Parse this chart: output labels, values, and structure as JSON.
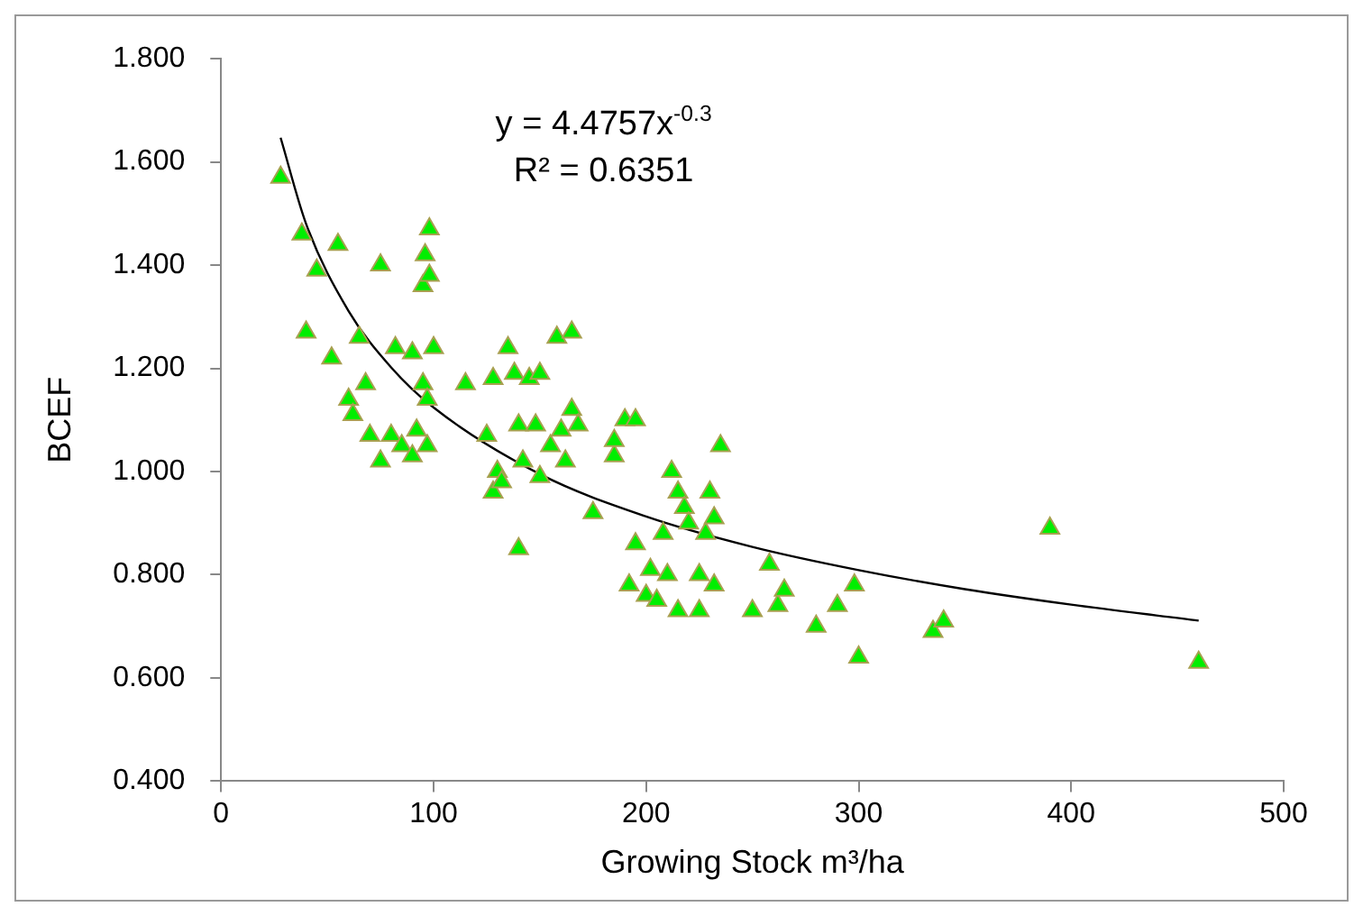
{
  "chart_data": {
    "type": "scatter",
    "xlabel": "Growing Stock m³/ha",
    "ylabel": "BCEF",
    "annotations": [
      "y = 4.4757x$^{-0.3}$",
      "R² = 0.6351"
    ],
    "xlim": [
      0,
      500
    ],
    "xticks": [
      0,
      100,
      200,
      300,
      400,
      500
    ],
    "ylim": [
      0.4,
      1.8
    ],
    "yticks": [
      {
        "value": 0.4,
        "label": "0.400"
      },
      {
        "value": 0.6,
        "label": "0.600"
      },
      {
        "value": 0.8,
        "label": "0.800"
      },
      {
        "value": 1.0,
        "label": "1.000"
      },
      {
        "value": 1.2,
        "label": "1.200"
      },
      {
        "value": 1.4,
        "label": "1.400"
      },
      {
        "value": 1.6,
        "label": "1.600"
      },
      {
        "value": 1.8,
        "label": "1.800"
      }
    ],
    "grid": false,
    "legend": false,
    "marker": "triangle",
    "series": [
      {
        "color": "#00ee00",
        "x": [
          28,
          38,
          40,
          45,
          55,
          52,
          60,
          62,
          65,
          68,
          70,
          75,
          75,
          80,
          82,
          85,
          90,
          90,
          92,
          95,
          96,
          98,
          98,
          100,
          95,
          97,
          97,
          115,
          125,
          128,
          128,
          130,
          132,
          135,
          138,
          140,
          140,
          142,
          145,
          148,
          150,
          150,
          155,
          158,
          160,
          162,
          165,
          165,
          168,
          175,
          185,
          185,
          190,
          192,
          195,
          195,
          200,
          202,
          205,
          208,
          210,
          212,
          215,
          215,
          218,
          220,
          225,
          225,
          228,
          230,
          232,
          232,
          235,
          250,
          258,
          262,
          265,
          280,
          290,
          298,
          300,
          335,
          340,
          390,
          460
        ],
        "values": [
          1.57,
          1.46,
          1.27,
          1.39,
          1.44,
          1.22,
          1.14,
          1.11,
          1.26,
          1.17,
          1.07,
          1.4,
          1.02,
          1.07,
          1.24,
          1.05,
          1.03,
          1.23,
          1.08,
          1.36,
          1.42,
          1.47,
          1.38,
          1.24,
          1.17,
          1.14,
          1.05,
          1.17,
          1.07,
          1.18,
          0.96,
          1.0,
          0.98,
          1.24,
          1.19,
          1.09,
          0.85,
          1.02,
          1.18,
          1.09,
          1.19,
          0.99,
          1.05,
          1.26,
          1.08,
          1.02,
          1.27,
          1.12,
          1.09,
          0.92,
          1.03,
          1.06,
          1.1,
          0.78,
          1.1,
          0.86,
          0.76,
          0.81,
          0.75,
          0.88,
          0.8,
          1.0,
          0.96,
          0.73,
          0.93,
          0.9,
          0.73,
          0.8,
          0.88,
          0.96,
          0.78,
          0.91,
          1.05,
          0.73,
          0.82,
          0.74,
          0.77,
          0.7,
          0.74,
          0.78,
          0.64,
          0.69,
          0.71,
          0.89,
          0.63
        ]
      },
      {
        "type": "line",
        "color": "#000000",
        "marker": "none",
        "line_style": "solid",
        "x": [
          28,
          40,
          60,
          80,
          100,
          150,
          200,
          250,
          300,
          350,
          400,
          460
        ],
        "values": [
          1.647,
          1.48,
          1.311,
          1.202,
          1.124,
          0.995,
          0.913,
          0.854,
          0.809,
          0.772,
          0.742,
          0.711
        ]
      }
    ]
  }
}
